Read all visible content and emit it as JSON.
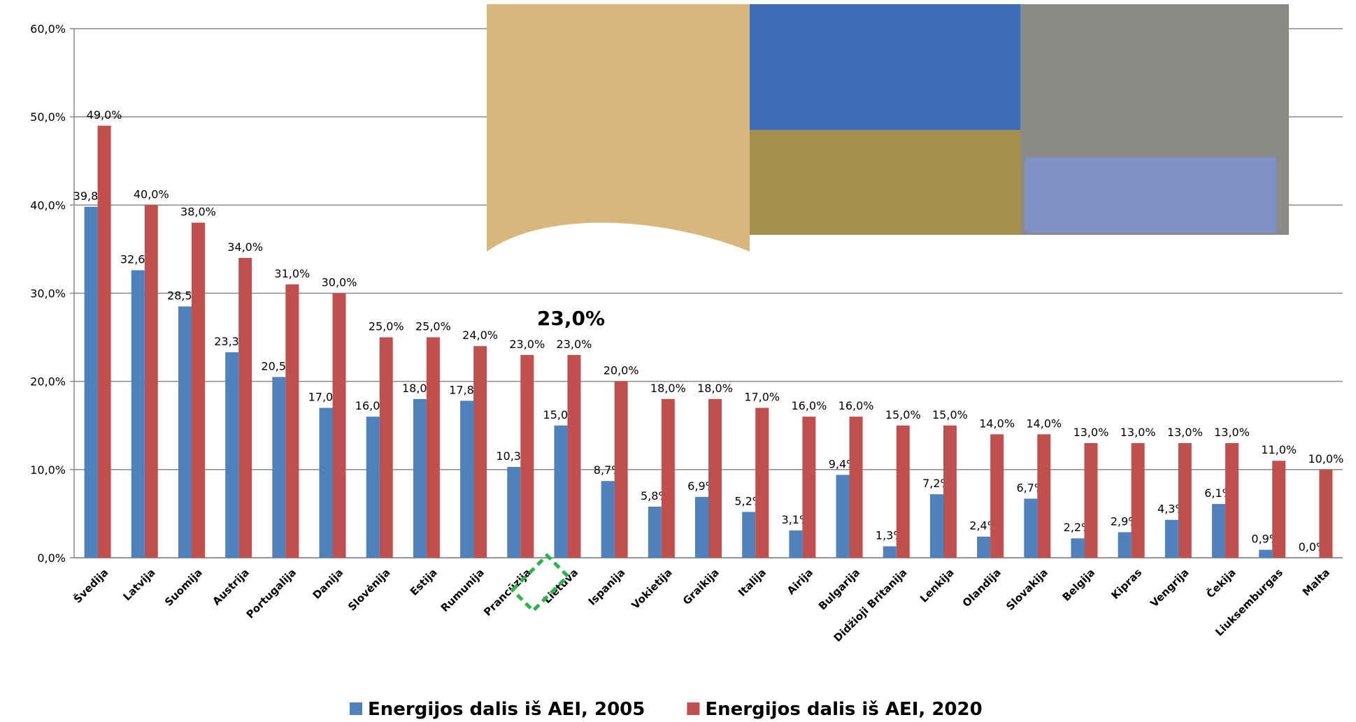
{
  "chart_data": {
    "type": "bar",
    "categories": [
      "Švedija",
      "Latvija",
      "Suomija",
      "Austrija",
      "Portugalija",
      "Danija",
      "Slovėnija",
      "Estija",
      "Rumunija",
      "Prancūzija",
      "Lietuva",
      "Ispanija",
      "Vokietija",
      "Graikija",
      "Italija",
      "Airija",
      "Bulgarija",
      "Didžioji Britanija",
      "Lenkija",
      "Olandija",
      "Slovakija",
      "Belgija",
      "Kipras",
      "Vengrija",
      "Čekija",
      "Liuksemburgas",
      "Malta"
    ],
    "series": [
      {
        "name": "Energijos dalis iš AEI, 2005",
        "color": "#4f81bd",
        "values": [
          39.8,
          32.6,
          28.5,
          23.3,
          20.5,
          17.0,
          16.0,
          18.0,
          17.8,
          10.3,
          15.0,
          8.7,
          5.8,
          6.9,
          5.2,
          3.1,
          9.4,
          1.3,
          7.2,
          2.4,
          6.7,
          2.2,
          2.9,
          4.3,
          6.1,
          0.9,
          0.0
        ],
        "value_labels": [
          "39,8%",
          "32,6%",
          "28,5%",
          "23,3%",
          "20,5%",
          "17,0%",
          "16,0%",
          "18,0%",
          "17,8%",
          "10,3%",
          "15,0%",
          "8,7%",
          "5,8%",
          "6,9%",
          "5,2%",
          "3,1%",
          "9,4%",
          "1,3%",
          "7,2%",
          "2,4%",
          "6,7%",
          "2,2%",
          "2,9%",
          "4,3%",
          "6,1%",
          "0,9%",
          "0,0%"
        ]
      },
      {
        "name": "Energijos dalis iš AEI, 2020",
        "color": "#c0504d",
        "values": [
          49.0,
          40.0,
          38.0,
          34.0,
          31.0,
          30.0,
          25.0,
          25.0,
          24.0,
          23.0,
          23.0,
          20.0,
          18.0,
          18.0,
          17.0,
          16.0,
          16.0,
          15.0,
          15.0,
          14.0,
          14.0,
          13.0,
          13.0,
          13.0,
          13.0,
          11.0,
          10.0
        ],
        "value_labels": [
          "49,0%",
          "40,0%",
          "38,0%",
          "34,0%",
          "31,0%",
          "30,0%",
          "25,0%",
          "25,0%",
          "24,0%",
          "23,0%",
          "23,0%",
          "20,0%",
          "18,0%",
          "18,0%",
          "17,0%",
          "16,0%",
          "16,0%",
          "15,0%",
          "15,0%",
          "14,0%",
          "14,0%",
          "13,0%",
          "13,0%",
          "13,0%",
          "13,0%",
          "11,0%",
          "10,0%"
        ]
      }
    ],
    "ylim": [
      0,
      60
    ],
    "yticks": [
      {
        "value": 0,
        "label": "0,0%"
      },
      {
        "value": 10,
        "label": "10,0%"
      },
      {
        "value": 20,
        "label": "20,0%"
      },
      {
        "value": 30,
        "label": "30,0%"
      },
      {
        "value": 40,
        "label": "40,0%"
      },
      {
        "value": 50,
        "label": "50,0%"
      },
      {
        "value": 60,
        "label": "60,0%"
      }
    ],
    "grid": true,
    "annotation": "23,0%",
    "legend": "bottom"
  }
}
